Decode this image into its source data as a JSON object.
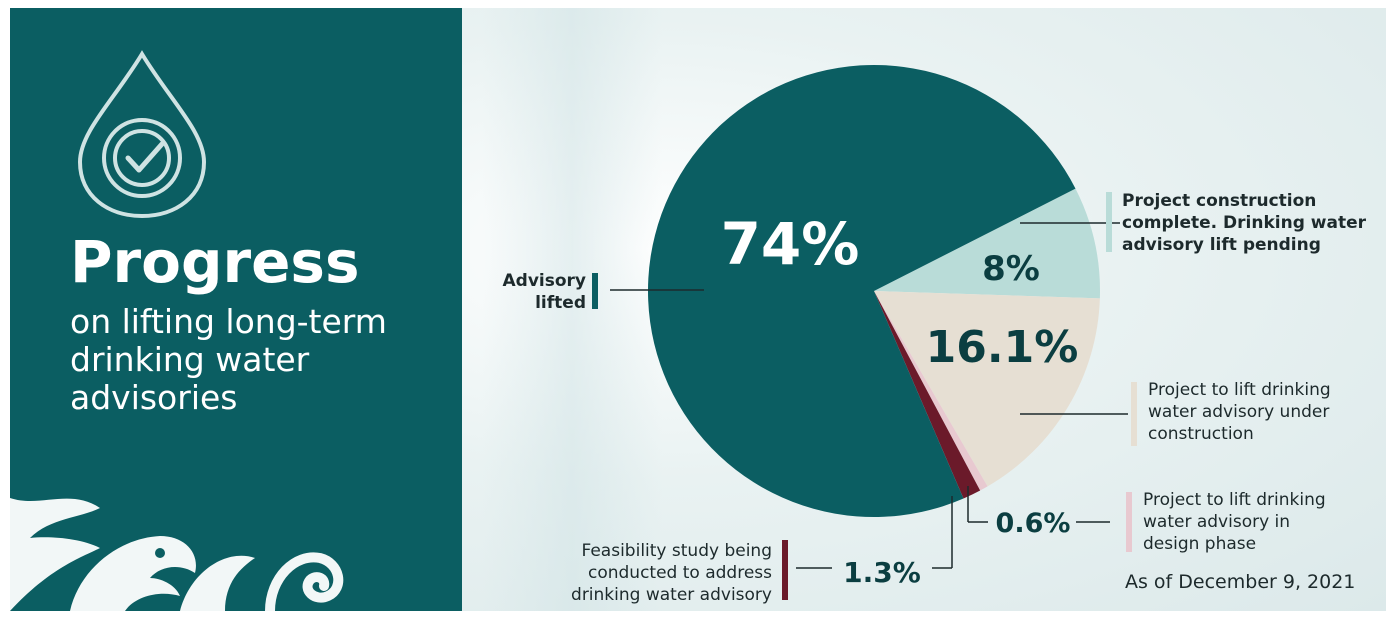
{
  "header": {
    "title": "Progress",
    "subtitle": "on lifting long-term drinking water advisories"
  },
  "footer": {
    "as_of": "As of December 9, 2021"
  },
  "colors": {
    "panel": "#0b5e62",
    "advisory_lifted": "#0b5e62",
    "construction_complete": "#b9dcd8",
    "under_construction": "#e6dfd3",
    "design_phase": "#e8c9d0",
    "feasibility": "#6b1a2a"
  },
  "chart_data": {
    "type": "pie",
    "title": "",
    "slices": [
      {
        "label": "Advisory lifted",
        "value": 74,
        "display": "74%",
        "color": "#0b5e62"
      },
      {
        "label": "Project construction complete. Drinking water advisory lift pending",
        "value": 8,
        "display": "8%",
        "color": "#b9dcd8"
      },
      {
        "label": "Project to lift drinking water advisory under construction",
        "value": 16.1,
        "display": "16.1%",
        "color": "#e6dfd3"
      },
      {
        "label": "Project to lift drinking water advisory in design phase",
        "value": 0.6,
        "display": "0.6%",
        "color": "#e8c9d0"
      },
      {
        "label": "Feasibility study being conducted to address drinking water advisory",
        "value": 1.3,
        "display": "1.3%",
        "color": "#6b1a2a"
      }
    ],
    "labels": {
      "advisory_lifted": [
        "Advisory",
        "lifted"
      ],
      "construction_complete": [
        "Project construction",
        "complete. Drinking water",
        "advisory lift pending"
      ],
      "under_construction": [
        "Project to lift drinking",
        "water advisory under",
        "construction"
      ],
      "design_phase": [
        "Project to lift drinking",
        "water advisory in",
        "design phase"
      ],
      "feasibility": [
        "Feasibility study being",
        "conducted to address",
        "drinking water advisory"
      ]
    }
  }
}
